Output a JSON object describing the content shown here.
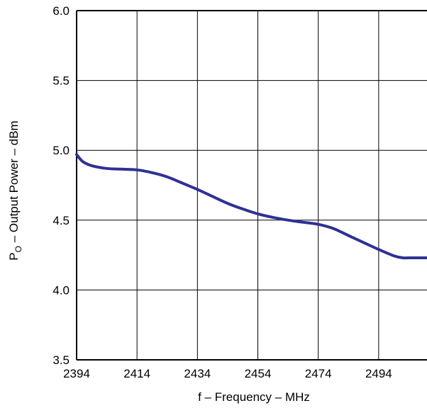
{
  "chart_data": {
    "type": "line",
    "xlabel": "f – Frequency – MHz",
    "ylabel": {
      "prefix": "P",
      "subscript": "O",
      "suffix": " – Output Power – dBm"
    },
    "xlim": [
      2394,
      2510
    ],
    "ylim": [
      3.5,
      6.0
    ],
    "x_ticks": [
      2394,
      2414,
      2434,
      2454,
      2474,
      2494
    ],
    "x_tick_labels": [
      "2394",
      "2414",
      "2434",
      "2454",
      "2474",
      "2494"
    ],
    "x_gridlines": [
      2394,
      2414,
      2434,
      2454,
      2474,
      2494
    ],
    "y_ticks": [
      3.5,
      4.0,
      4.5,
      5.0,
      5.5,
      6.0
    ],
    "y_tick_labels": [
      "3.5",
      "4.0",
      "4.5",
      "5.0",
      "5.5",
      "6.0"
    ],
    "grid": true,
    "series": [
      {
        "color": "#2e3192",
        "x": [
          2394,
          2396,
          2399,
          2404,
          2409,
          2414,
          2419,
          2424,
          2429,
          2434,
          2439,
          2444,
          2449,
          2454,
          2459,
          2464,
          2469,
          2474,
          2479,
          2484,
          2489,
          2494,
          2499,
          2502,
          2504,
          2510
        ],
        "y": [
          4.97,
          4.92,
          4.89,
          4.87,
          4.865,
          4.86,
          4.84,
          4.81,
          4.765,
          4.72,
          4.67,
          4.62,
          4.58,
          4.545,
          4.52,
          4.5,
          4.485,
          4.47,
          4.44,
          4.39,
          4.34,
          4.29,
          4.245,
          4.23,
          4.23,
          4.23
        ]
      }
    ]
  }
}
